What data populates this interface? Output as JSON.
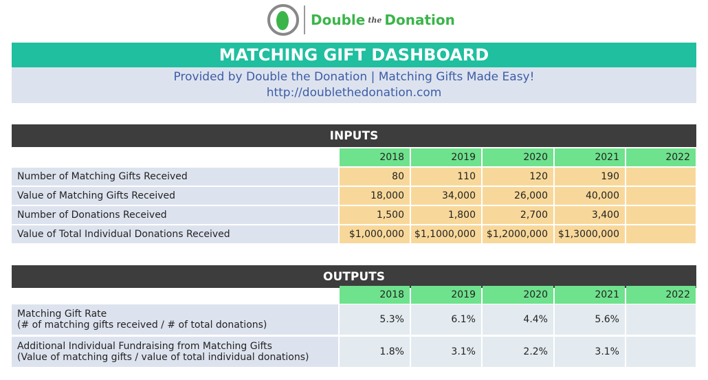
{
  "logo": {
    "name_start": "Double",
    "name_middle": "the",
    "name_end": "Donation"
  },
  "header": {
    "title": "MATCHING GIFT DASHBOARD",
    "subtitle": "Provided by Double the Donation | Matching Gifts Made Easy!",
    "url": "http://doublethedonation.com"
  },
  "inputs": {
    "title": "INPUTS",
    "years": [
      "2018",
      "2019",
      "2020",
      "2021",
      "2022"
    ],
    "rows": [
      {
        "label": "Number of Matching Gifts Received",
        "values": [
          "80",
          "110",
          "120",
          "190"
        ]
      },
      {
        "label": "Value of Matching Gifts Received",
        "values": [
          "18,000",
          "34,000",
          "26,000",
          "40,000"
        ]
      },
      {
        "label": "Number of Donations Received",
        "values": [
          "1,500",
          "1,800",
          "2,700",
          "3,400"
        ]
      },
      {
        "label": "Value of Total Individual Donations Received",
        "values": [
          "$1,000,000",
          "$1,1000,000",
          "$1,2000,000",
          "$1,3000,000"
        ]
      }
    ]
  },
  "outputs": {
    "title": "OUTPUTS",
    "years": [
      "2018",
      "2019",
      "2020",
      "2021",
      "2022"
    ],
    "rows": [
      {
        "label": "Matching Gift Rate",
        "note": "(# of matching gifts received / # of total donations)",
        "values": [
          "5.3%",
          "6.1%",
          "4.4%",
          "5.6%"
        ]
      },
      {
        "label": "Additional Individual Fundraising from Matching Gifts",
        "note": "(Value of matching gifts / value of total individual donations)",
        "values": [
          "1.8%",
          "3.1%",
          "2.2%",
          "3.1%"
        ]
      }
    ]
  }
}
